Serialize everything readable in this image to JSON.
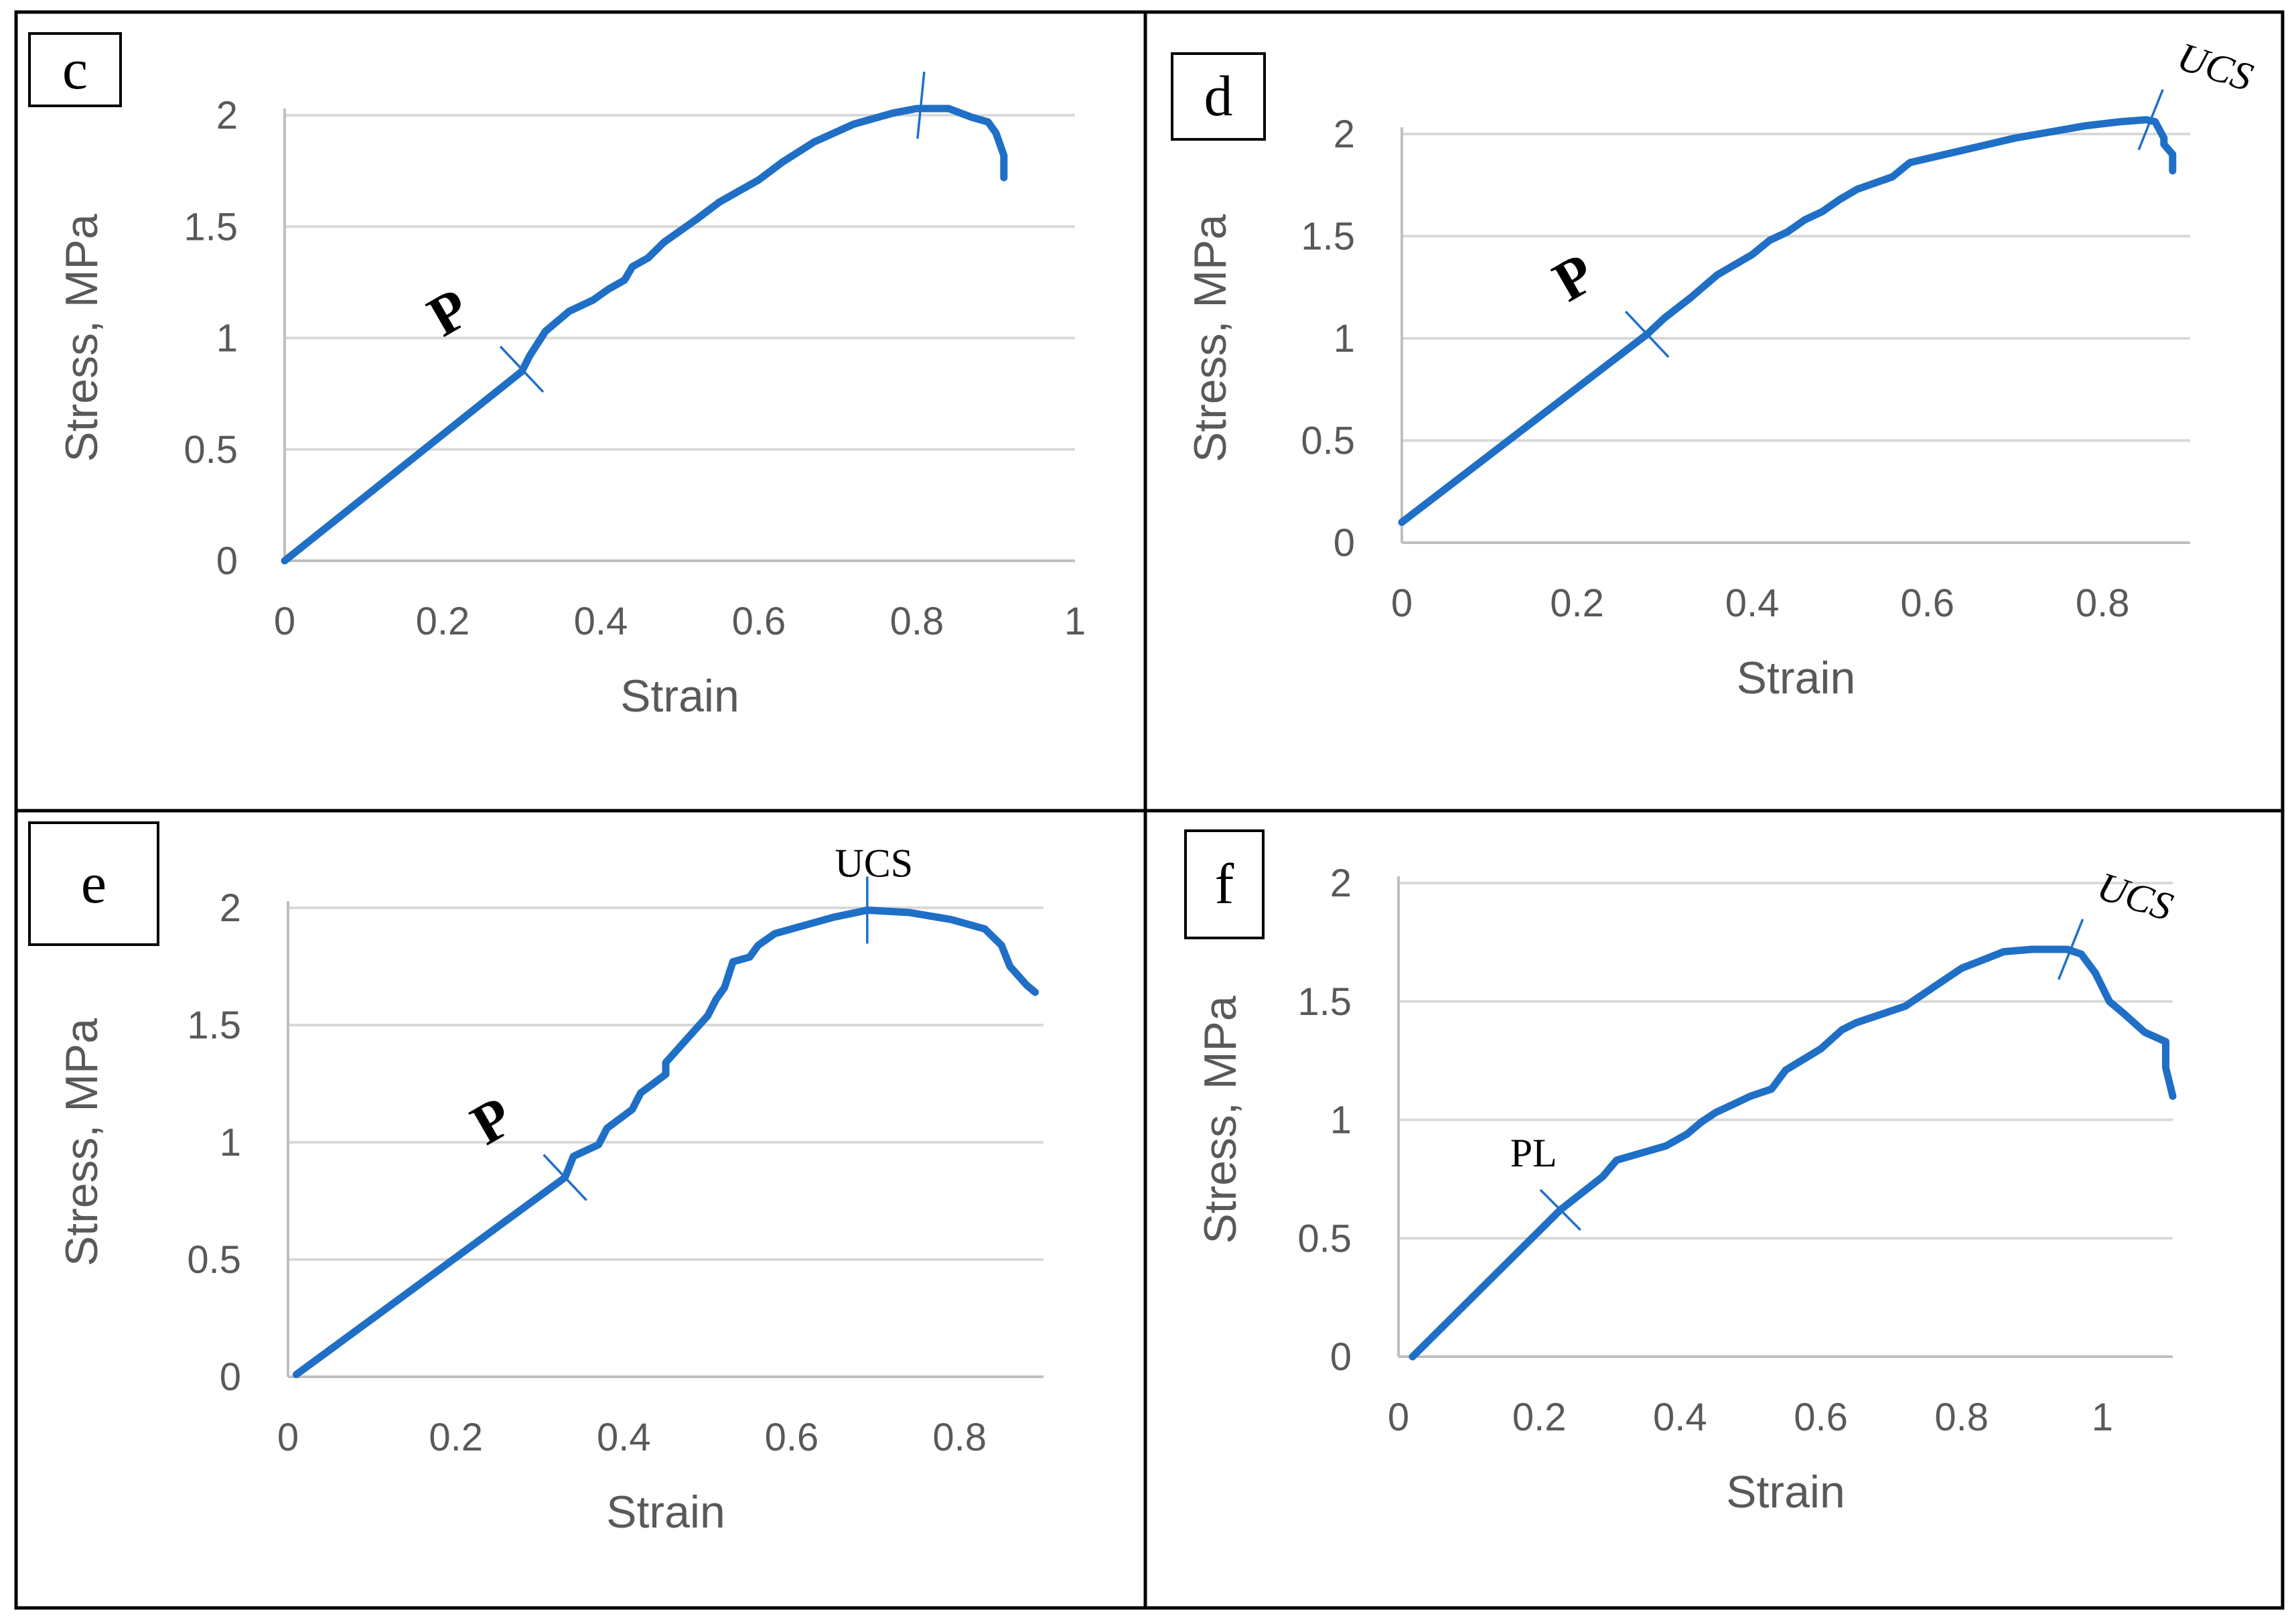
{
  "chart_data": [
    {
      "type": "line",
      "panel": "c",
      "xlabel": "Strain",
      "ylabel": "Stress, MPa",
      "xlim": [
        0,
        1
      ],
      "ylim": [
        0,
        2
      ],
      "xticks": [
        0,
        0.2,
        0.4,
        0.6,
        0.8,
        1
      ],
      "xtick_labels": [
        "0",
        "0.2",
        "0.4",
        "0.6",
        "0.8",
        "1"
      ],
      "yticks": [
        0,
        0.5,
        1,
        1.5,
        2
      ],
      "ytick_labels": [
        "0",
        "0.5",
        "1",
        "1.5",
        "2"
      ],
      "grid": true,
      "color": "#1f6fc6",
      "series": [
        {
          "x": [
            0,
            0.3,
            0.31,
            0.33,
            0.36,
            0.39,
            0.41,
            0.43,
            0.44,
            0.46,
            0.48,
            0.52,
            0.55,
            0.58,
            0.6,
            0.63,
            0.67,
            0.72,
            0.77,
            0.8,
            0.84,
            0.87,
            0.89,
            0.9,
            0.91,
            0.91
          ],
          "y": [
            0,
            0.85,
            0.92,
            1.03,
            1.12,
            1.17,
            1.22,
            1.26,
            1.32,
            1.36,
            1.43,
            1.53,
            1.61,
            1.67,
            1.71,
            1.79,
            1.88,
            1.96,
            2.01,
            2.03,
            2.03,
            1.99,
            1.97,
            1.92,
            1.82,
            1.72
          ]
        }
      ],
      "annotations": [
        {
          "text": "P",
          "x": 0.3,
          "y": 0.86,
          "style": "bold"
        },
        {
          "text": "",
          "x": 0.805,
          "y": 2.03,
          "style": "mark-only"
        }
      ]
    },
    {
      "type": "line",
      "panel": "d",
      "xlabel": "Strain",
      "ylabel": "Stress, MPa",
      "xlim": [
        0,
        0.9
      ],
      "ylim": [
        0,
        2
      ],
      "xticks": [
        0,
        0.2,
        0.4,
        0.6,
        0.8
      ],
      "xtick_labels": [
        "0",
        "0.2",
        "0.4",
        "0.6",
        "0.8"
      ],
      "yticks": [
        0,
        0.5,
        1,
        1.5,
        2
      ],
      "ytick_labels": [
        "0",
        "0.5",
        "1",
        "1.5",
        "2"
      ],
      "grid": true,
      "color": "#1f6fc6",
      "series": [
        {
          "x": [
            0,
            0.28,
            0.3,
            0.33,
            0.36,
            0.4,
            0.42,
            0.44,
            0.46,
            0.48,
            0.5,
            0.52,
            0.54,
            0.56,
            0.58,
            0.62,
            0.66,
            0.7,
            0.74,
            0.78,
            0.82,
            0.85,
            0.86,
            0.87,
            0.87,
            0.88,
            0.88
          ],
          "y": [
            0.1,
            1.02,
            1.1,
            1.2,
            1.31,
            1.41,
            1.48,
            1.52,
            1.58,
            1.62,
            1.68,
            1.73,
            1.76,
            1.79,
            1.86,
            1.9,
            1.94,
            1.98,
            2.01,
            2.04,
            2.06,
            2.07,
            2.06,
            1.98,
            1.95,
            1.9,
            1.82
          ]
        }
      ],
      "annotations": [
        {
          "text": "P",
          "x": 0.28,
          "y": 1.02,
          "style": "bold"
        },
        {
          "text": "UCS",
          "x": 0.855,
          "y": 2.07,
          "style": "italic"
        }
      ]
    },
    {
      "type": "line",
      "panel": "e",
      "xlabel": "Strain",
      "ylabel": "Stress, MPa",
      "xlim": [
        0,
        0.9
      ],
      "ylim": [
        0,
        2
      ],
      "xticks": [
        0,
        0.2,
        0.4,
        0.6,
        0.8
      ],
      "xtick_labels": [
        "0",
        "0.2",
        "0.4",
        "0.6",
        "0.8"
      ],
      "yticks": [
        0,
        0.5,
        1,
        1.5,
        2
      ],
      "ytick_labels": [
        "0",
        "0.5",
        "1",
        "1.5",
        "2"
      ],
      "grid": true,
      "color": "#1f6fc6",
      "series": [
        {
          "x": [
            0.01,
            0.33,
            0.34,
            0.37,
            0.38,
            0.41,
            0.42,
            0.45,
            0.45,
            0.48,
            0.5,
            0.51,
            0.52,
            0.53,
            0.55,
            0.56,
            0.58,
            0.61,
            0.65,
            0.69,
            0.74,
            0.79,
            0.83,
            0.85,
            0.86,
            0.88,
            0.89
          ],
          "y": [
            0.01,
            0.85,
            0.94,
            0.99,
            1.06,
            1.14,
            1.21,
            1.29,
            1.34,
            1.46,
            1.54,
            1.61,
            1.66,
            1.77,
            1.79,
            1.84,
            1.89,
            1.92,
            1.96,
            1.99,
            1.98,
            1.95,
            1.91,
            1.84,
            1.75,
            1.67,
            1.64
          ]
        }
      ],
      "annotations": [
        {
          "text": "P",
          "x": 0.33,
          "y": 0.85,
          "style": "bold"
        },
        {
          "text": "UCS",
          "x": 0.69,
          "y": 1.99,
          "style": "regular"
        }
      ]
    },
    {
      "type": "line",
      "panel": "f",
      "xlabel": "Strain",
      "ylabel": "Stress, MPa",
      "xlim": [
        0,
        1.1
      ],
      "ylim": [
        0,
        2
      ],
      "xticks": [
        0,
        0.2,
        0.4,
        0.6,
        0.8,
        1
      ],
      "xtick_labels": [
        "0",
        "0.2",
        "0.4",
        "0.6",
        "0.8",
        "1"
      ],
      "yticks": [
        0,
        0.5,
        1,
        1.5,
        2
      ],
      "ytick_labels": [
        "0",
        "0.5",
        "1",
        "1.5",
        "2"
      ],
      "grid": true,
      "color": "#1f6fc6",
      "series": [
        {
          "x": [
            0.02,
            0.23,
            0.26,
            0.29,
            0.31,
            0.38,
            0.41,
            0.43,
            0.45,
            0.5,
            0.53,
            0.55,
            0.6,
            0.63,
            0.65,
            0.68,
            0.72,
            0.75,
            0.8,
            0.86,
            0.9,
            0.95,
            0.97,
            0.99,
            1.01,
            1.03,
            1.06,
            1.09,
            1.09,
            1.1
          ],
          "y": [
            0,
            0.62,
            0.69,
            0.76,
            0.83,
            0.89,
            0.94,
            0.99,
            1.03,
            1.1,
            1.13,
            1.21,
            1.3,
            1.38,
            1.41,
            1.44,
            1.48,
            1.54,
            1.64,
            1.71,
            1.72,
            1.72,
            1.7,
            1.62,
            1.5,
            1.45,
            1.37,
            1.33,
            1.22,
            1.1
          ]
        }
      ],
      "annotations": [
        {
          "text": "PL",
          "x": 0.23,
          "y": 0.62,
          "style": "regular"
        },
        {
          "text": "UCS",
          "x": 0.955,
          "y": 1.72,
          "style": "italic"
        }
      ]
    }
  ]
}
